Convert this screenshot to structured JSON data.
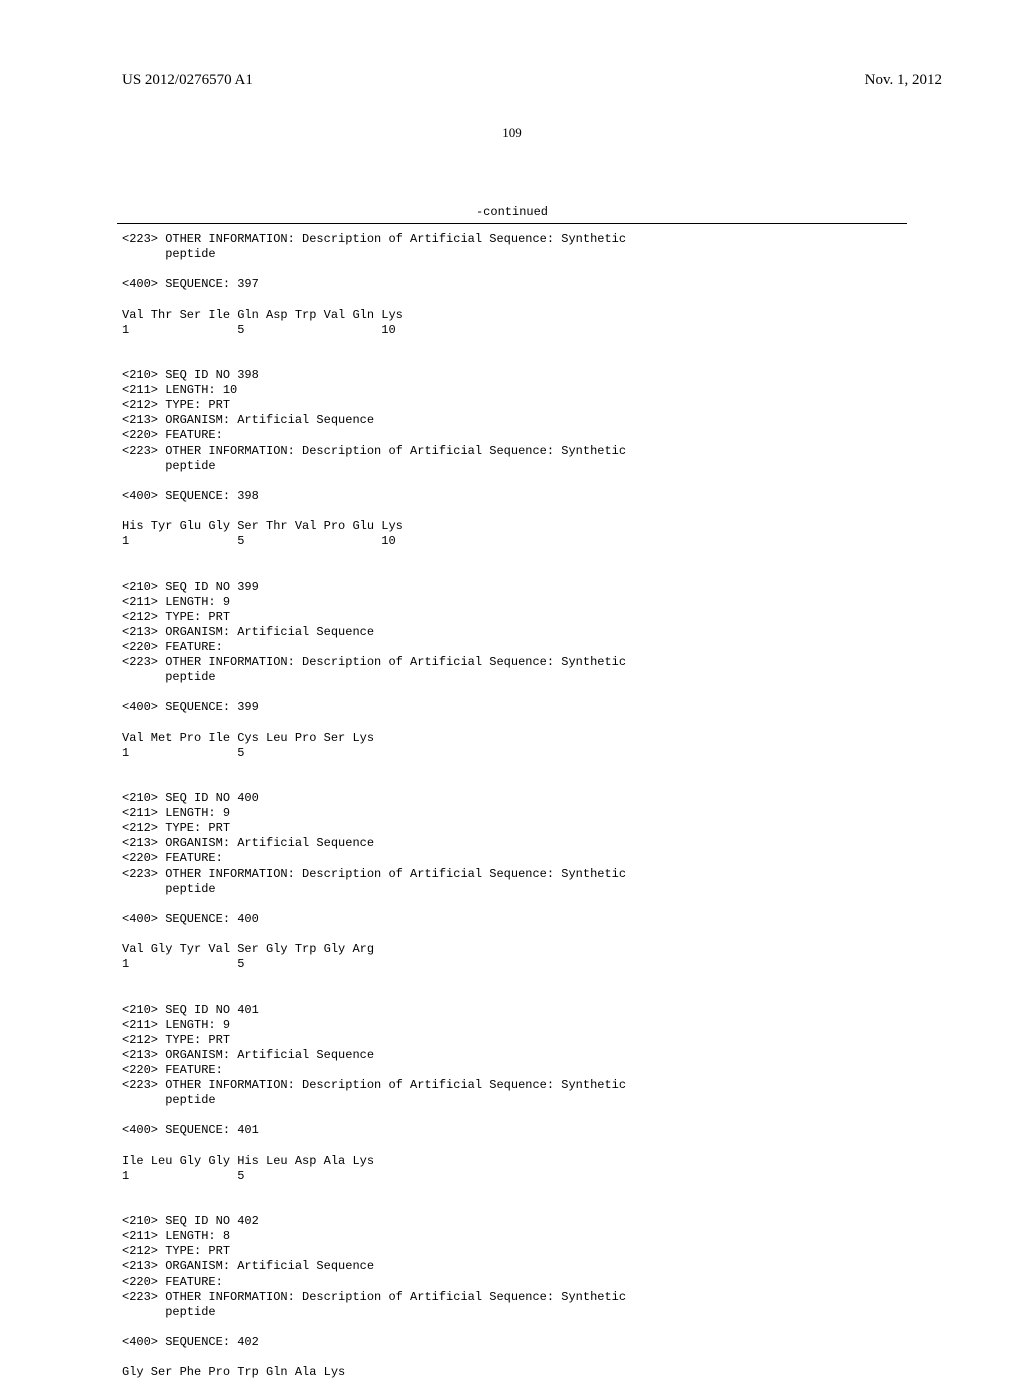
{
  "header": {
    "patent_number": "US 2012/0276570 A1",
    "date": "Nov. 1, 2012"
  },
  "page_number": "109",
  "continued_label": "-continued",
  "content": "<223> OTHER INFORMATION: Description of Artificial Sequence: Synthetic\n      peptide\n\n<400> SEQUENCE: 397\n\nVal Thr Ser Ile Gln Asp Trp Val Gln Lys\n1               5                   10\n\n\n<210> SEQ ID NO 398\n<211> LENGTH: 10\n<212> TYPE: PRT\n<213> ORGANISM: Artificial Sequence\n<220> FEATURE:\n<223> OTHER INFORMATION: Description of Artificial Sequence: Synthetic\n      peptide\n\n<400> SEQUENCE: 398\n\nHis Tyr Glu Gly Ser Thr Val Pro Glu Lys\n1               5                   10\n\n\n<210> SEQ ID NO 399\n<211> LENGTH: 9\n<212> TYPE: PRT\n<213> ORGANISM: Artificial Sequence\n<220> FEATURE:\n<223> OTHER INFORMATION: Description of Artificial Sequence: Synthetic\n      peptide\n\n<400> SEQUENCE: 399\n\nVal Met Pro Ile Cys Leu Pro Ser Lys\n1               5\n\n\n<210> SEQ ID NO 400\n<211> LENGTH: 9\n<212> TYPE: PRT\n<213> ORGANISM: Artificial Sequence\n<220> FEATURE:\n<223> OTHER INFORMATION: Description of Artificial Sequence: Synthetic\n      peptide\n\n<400> SEQUENCE: 400\n\nVal Gly Tyr Val Ser Gly Trp Gly Arg\n1               5\n\n\n<210> SEQ ID NO 401\n<211> LENGTH: 9\n<212> TYPE: PRT\n<213> ORGANISM: Artificial Sequence\n<220> FEATURE:\n<223> OTHER INFORMATION: Description of Artificial Sequence: Synthetic\n      peptide\n\n<400> SEQUENCE: 401\n\nIle Leu Gly Gly His Leu Asp Ala Lys\n1               5\n\n\n<210> SEQ ID NO 402\n<211> LENGTH: 8\n<212> TYPE: PRT\n<213> ORGANISM: Artificial Sequence\n<220> FEATURE:\n<223> OTHER INFORMATION: Description of Artificial Sequence: Synthetic\n      peptide\n\n<400> SEQUENCE: 402\n\nGly Ser Phe Pro Trp Gln Ala Lys"
}
